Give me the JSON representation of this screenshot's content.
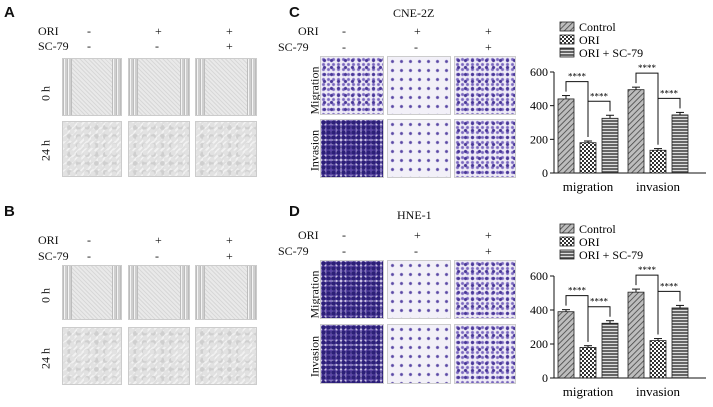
{
  "panels": {
    "A": "A",
    "B": "B",
    "C": "C",
    "D": "D"
  },
  "row_labels": {
    "ori": "ORI",
    "sc79": "SC-79"
  },
  "conditions": {
    "ori": [
      "-",
      "+",
      "+"
    ],
    "sc79": [
      "-",
      "-",
      "+"
    ]
  },
  "time_labels": [
    "0 h",
    "24 h"
  ],
  "assay_labels": [
    "Migration",
    "Invasion"
  ],
  "cell_lines": {
    "c": "CNE-2Z",
    "d": "HNE-1"
  },
  "colors": {
    "bar_outline": "#222222",
    "text": "#111111"
  },
  "chart_data": [
    {
      "type": "bar",
      "categories": [
        "migration",
        "invasion"
      ],
      "series": [
        {
          "name": "Control",
          "values": [
            440,
            495
          ],
          "errors": [
            20,
            15
          ]
        },
        {
          "name": "ORI",
          "values": [
            180,
            135
          ],
          "errors": [
            10,
            10
          ]
        },
        {
          "name": "ORI + SC-79",
          "values": [
            325,
            345
          ],
          "errors": [
            18,
            15
          ]
        }
      ],
      "yticks": [
        0,
        200,
        400,
        600
      ],
      "ylim": [
        0,
        600
      ],
      "significance": [
        "****",
        "****",
        "****",
        "****"
      ],
      "legend_position": "top-right",
      "patterns": [
        "diagonal",
        "checker",
        "horizontal"
      ]
    },
    {
      "type": "bar",
      "categories": [
        "migration",
        "invasion"
      ],
      "series": [
        {
          "name": "Control",
          "values": [
            390,
            505
          ],
          "errors": [
            12,
            18
          ]
        },
        {
          "name": "ORI",
          "values": [
            180,
            220
          ],
          "errors": [
            10,
            12
          ]
        },
        {
          "name": "ORI + SC-79",
          "values": [
            322,
            412
          ],
          "errors": [
            15,
            15
          ]
        }
      ],
      "yticks": [
        0,
        200,
        400,
        600
      ],
      "ylim": [
        0,
        600
      ],
      "significance": [
        "****",
        "****",
        "****",
        "****"
      ],
      "legend_position": "top-right",
      "patterns": [
        "diagonal",
        "checker",
        "horizontal"
      ]
    }
  ]
}
